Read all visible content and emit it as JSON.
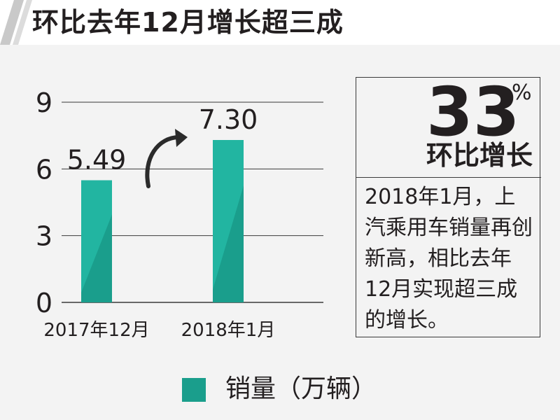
{
  "header": {
    "title": "环比去年12月增长超三成"
  },
  "chart_data": {
    "type": "bar",
    "categories": [
      "2017年12月",
      "2018年1月"
    ],
    "series": [
      {
        "name": "销量（万辆）",
        "values": [
          5.49,
          7.3
        ]
      }
    ],
    "value_labels": [
      "5.49",
      "7.30"
    ],
    "yticks": [
      "0",
      "3",
      "6",
      "9"
    ],
    "ylim": [
      0,
      9
    ],
    "grid": true,
    "legend_position": "bottom",
    "colors": {
      "bar": "#1a9e8c",
      "bar_light": "#22b5a1"
    }
  },
  "callout": {
    "number": "33",
    "unit": "%",
    "label": "环比增长",
    "text": "2018年1月，上汽乘用车销量再创新高，相比去年12月实现超三成的增长。"
  },
  "legend": {
    "label": "销量（万辆）"
  }
}
